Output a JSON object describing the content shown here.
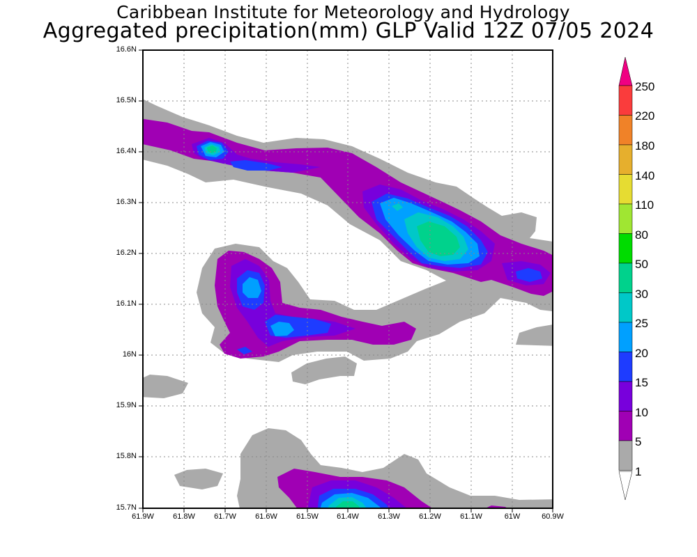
{
  "header": {
    "institution": "Caribbean Institute for Meteorology and Hydrology",
    "title": "Aggregated precipitation(mm) GLP Valid 12Z 07/05 2024"
  },
  "map": {
    "lat_labels": [
      "16.6N",
      "16.5N",
      "16.4N",
      "16.3N",
      "16.2N",
      "16.1N",
      "16N",
      "15.9N",
      "15.8N",
      "15.7N"
    ],
    "lon_labels": [
      "61.9W",
      "61.8W",
      "61.7W",
      "61.6W",
      "61.5W",
      "61.4W",
      "61.3W",
      "61.2W",
      "61.1W",
      "61W",
      "60.9W"
    ],
    "lat_range": [
      15.7,
      16.6
    ],
    "lon_range": [
      -61.9,
      -60.9
    ],
    "grid": "dotted",
    "variable": "precipitation",
    "units": "mm"
  },
  "colorbar": {
    "levels": [
      "1",
      "5",
      "10",
      "15",
      "20",
      "25",
      "30",
      "50",
      "80",
      "110",
      "140",
      "180",
      "220",
      "250"
    ],
    "colors": {
      "1-5": "#aaaaaa",
      "5-10": "#a000b4",
      "10-15": "#7800dc",
      "15-20": "#1e3cff",
      "20-25": "#00a0ff",
      "25-30": "#00c8c8",
      "30-50": "#00d28c",
      "50-80": "#00dc00",
      "80-110": "#a0e632",
      "110-140": "#e6dc32",
      "140-180": "#e6af2d",
      "180-220": "#f08228",
      "220-250": "#fa3c3c",
      "above-250": "#f00082"
    }
  }
}
